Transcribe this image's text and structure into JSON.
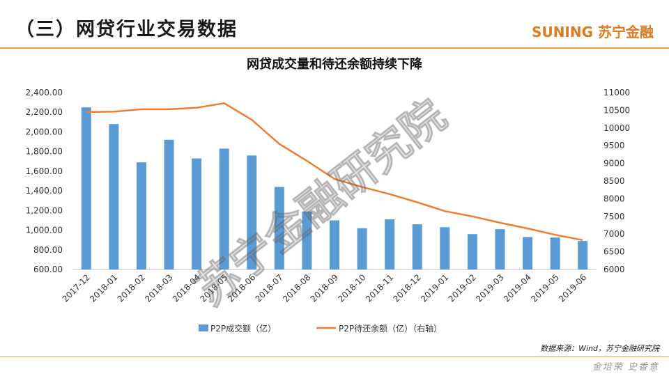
{
  "header": {
    "title": "（三）网贷行业交易数据",
    "brand": "SUNING 苏宁金融"
  },
  "footer": {
    "source": "数据来源：Wind，苏宁金融研究院",
    "signature": "金培荣 史香意"
  },
  "watermark": "苏宁金融研究院",
  "colors": {
    "bar": "#5b9bd5",
    "line": "#ed7d31",
    "accent": "#e89a47"
  },
  "chart_data": {
    "type": "bar",
    "title": "网贷成交量和待还余额持续下降",
    "categories": [
      "2017-12",
      "2018-01",
      "2018-02",
      "2018-03",
      "2018-04",
      "2018-05",
      "2018-06",
      "2018-07",
      "2018-08",
      "2018-09",
      "2018-10",
      "2018-11",
      "2018-12",
      "2019-01",
      "2019-02",
      "2019-03",
      "2019-04",
      "2019-05",
      "2019-06"
    ],
    "series": [
      {
        "name": "P2P成交额（亿）",
        "type": "bar",
        "axis": "left",
        "values": [
          2250,
          2080,
          1690,
          1920,
          1730,
          1830,
          1760,
          1440,
          1190,
          1100,
          1020,
          1110,
          1060,
          1030,
          960,
          1010,
          930,
          925,
          890
        ]
      },
      {
        "name": "P2P待还余额（亿）（右轴）",
        "type": "line",
        "axis": "right",
        "values": [
          10450,
          10460,
          10530,
          10530,
          10570,
          10700,
          10230,
          9550,
          9070,
          8560,
          8330,
          8130,
          7900,
          7650,
          7500,
          7320,
          7160,
          6980,
          6830
        ]
      }
    ],
    "y_left": {
      "min": 600,
      "max": 2400,
      "ticks": [
        "600.00",
        "800.00",
        "1,000.00",
        "1,200.00",
        "1,400.00",
        "1,600.00",
        "1,800.00",
        "2,000.00",
        "2,200.00",
        "2,400.00"
      ]
    },
    "y_right": {
      "min": 6000,
      "max": 11000,
      "ticks": [
        "6000",
        "6500",
        "7000",
        "7500",
        "8000",
        "8500",
        "9000",
        "9500",
        "10000",
        "10500",
        "11000"
      ]
    },
    "grid": false,
    "legend_position": "bottom"
  }
}
